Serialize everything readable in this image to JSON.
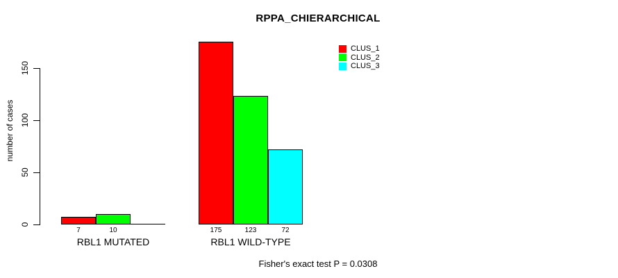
{
  "chart_data": {
    "type": "bar",
    "title": "RPPA_CHIERARCHICAL",
    "ylabel": "number of cases",
    "ylim": [
      0,
      175
    ],
    "yticks": [
      0,
      50,
      100,
      150
    ],
    "grid": false,
    "background": "#ffffff",
    "categories": [
      "RBL1 MUTATED",
      "RBL1 WILD-TYPE"
    ],
    "series": [
      {
        "name": "CLUS_1",
        "color": "#ff0000",
        "values": [
          7,
          175
        ]
      },
      {
        "name": "CLUS_2",
        "color": "#00ff00",
        "values": [
          10,
          123
        ]
      },
      {
        "name": "CLUS_3",
        "color": "#00ffff",
        "values": [
          0,
          72
        ]
      }
    ],
    "bar_value_labels": [
      [
        "7",
        "10",
        ""
      ],
      [
        "175",
        "123",
        "72"
      ]
    ],
    "legend": {
      "position": "top-right",
      "entries": [
        {
          "label": "CLUS_1",
          "color": "#ff0000"
        },
        {
          "label": "CLUS_2",
          "color": "#00ff00"
        },
        {
          "label": "CLUS_3",
          "color": "#00ffff"
        }
      ]
    },
    "annotation": "Fisher's exact test P = 0.0308"
  }
}
